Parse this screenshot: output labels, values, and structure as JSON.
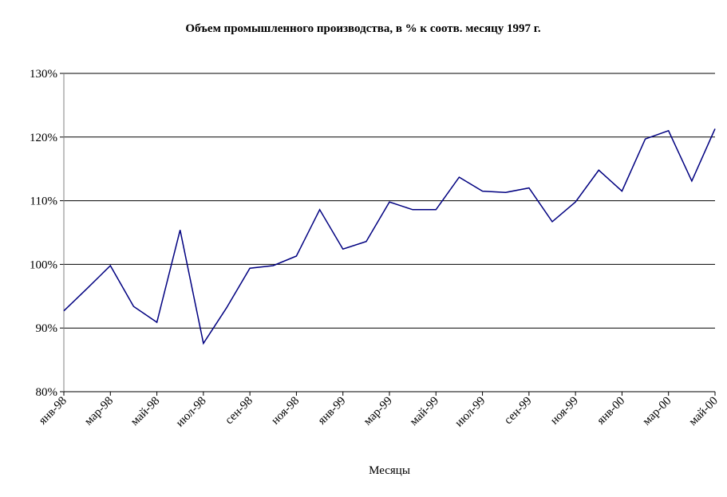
{
  "chart_data": {
    "type": "line",
    "title": "Объем промышленного производства, в % к соотв. месяцу 1997 г.",
    "x_label": "Месяцы",
    "categories": [
      "янв-98",
      null,
      "мар-98",
      null,
      "май-98",
      null,
      "июл-98",
      null,
      "сен-98",
      null,
      "ноя-98",
      null,
      "янв-99",
      null,
      "мар-99",
      null,
      "май-99",
      null,
      "июл-99",
      null,
      "сен-99",
      null,
      "ноя-99",
      null,
      "янв-00",
      null,
      "мар-00",
      null,
      "май-00"
    ],
    "series": [
      {
        "name": "Объем промышленного производства",
        "color": "#000080",
        "values": [
          92.7,
          96.2,
          99.8,
          93.4,
          90.9,
          105.4,
          87.6,
          93.2,
          99.4,
          99.8,
          101.3,
          108.6,
          102.4,
          103.6,
          109.8,
          108.6,
          108.6,
          113.7,
          111.5,
          111.3,
          112.0,
          106.7,
          109.8,
          114.8,
          111.5,
          119.7,
          121.0,
          113.1,
          121.3
        ]
      }
    ],
    "ylim": [
      80,
      130
    ],
    "yticks": [
      {
        "value": 80,
        "label": "80%"
      },
      {
        "value": 90,
        "label": "90%"
      },
      {
        "value": 100,
        "label": "100%"
      },
      {
        "value": 110,
        "label": "110%"
      },
      {
        "value": 120,
        "label": "120%"
      },
      {
        "value": 130,
        "label": "130%"
      }
    ],
    "grid": true
  }
}
